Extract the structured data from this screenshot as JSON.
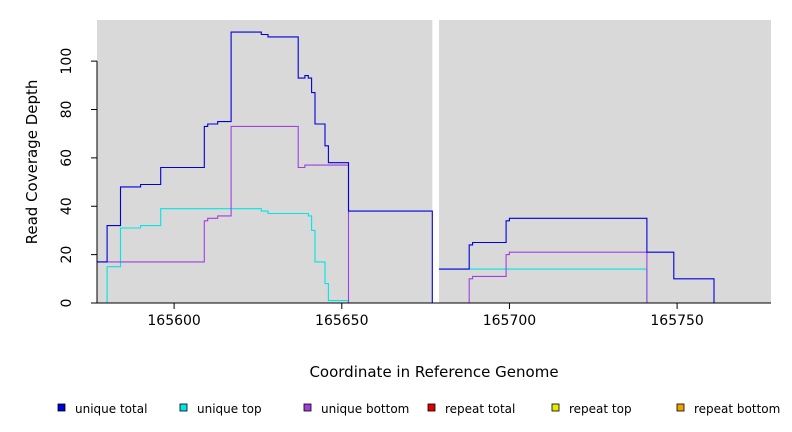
{
  "chart_data": {
    "type": "line",
    "xlabel": "Coordinate in Reference Genome",
    "ylabel": "Read Coverage Depth",
    "xlim": [
      165577,
      165778
    ],
    "ylim": [
      0,
      117
    ],
    "x_ticks": [
      "165600",
      "165650",
      "165700",
      "165750"
    ],
    "y_ticks": [
      "0",
      "20",
      "40",
      "60",
      "80",
      "100"
    ],
    "gap_between": [
      165677,
      165679
    ],
    "panel_color": "#d9d9d9",
    "series": [
      {
        "name": "unique total",
        "color": "#0000dd",
        "steps": [
          [
            165577,
            17
          ],
          [
            165580,
            32
          ],
          [
            165584,
            48
          ],
          [
            165590,
            49
          ],
          [
            165596,
            56
          ],
          [
            165609,
            73
          ],
          [
            165610,
            74
          ],
          [
            165613,
            75
          ],
          [
            165617,
            112
          ],
          [
            165626,
            111
          ],
          [
            165628,
            110
          ],
          [
            165637,
            93
          ],
          [
            165639,
            94
          ],
          [
            165640,
            93
          ],
          [
            165641,
            87
          ],
          [
            165642,
            74
          ],
          [
            165645,
            65
          ],
          [
            165646,
            58
          ],
          [
            165652,
            38
          ],
          [
            165677,
            0
          ]
        ],
        "steps2": [
          [
            165679,
            14
          ],
          [
            165688,
            24
          ],
          [
            165689,
            25
          ],
          [
            165699,
            34
          ],
          [
            165700,
            35
          ],
          [
            165741,
            21
          ],
          [
            165749,
            10
          ],
          [
            165761,
            0
          ],
          [
            165778,
            0
          ]
        ]
      },
      {
        "name": "unique top",
        "color": "#00e5e5",
        "steps": [
          [
            165577,
            0
          ],
          [
            165580,
            15
          ],
          [
            165584,
            31
          ],
          [
            165590,
            32
          ],
          [
            165596,
            39
          ],
          [
            165626,
            38
          ],
          [
            165628,
            37
          ],
          [
            165640,
            36
          ],
          [
            165641,
            30
          ],
          [
            165642,
            17
          ],
          [
            165645,
            8
          ],
          [
            165646,
            1
          ],
          [
            165652,
            0
          ],
          [
            165677,
            0
          ]
        ],
        "steps2": [
          [
            165679,
            14
          ],
          [
            165741,
            0
          ],
          [
            165778,
            0
          ]
        ]
      },
      {
        "name": "unique bottom",
        "color": "#a040e0",
        "steps": [
          [
            165577,
            17
          ],
          [
            165609,
            34
          ],
          [
            165610,
            35
          ],
          [
            165613,
            36
          ],
          [
            165617,
            73
          ],
          [
            165637,
            56
          ],
          [
            165639,
            57
          ],
          [
            165652,
            0
          ],
          [
            165677,
            0
          ]
        ],
        "steps2": [
          [
            165679,
            0
          ],
          [
            165688,
            10
          ],
          [
            165689,
            11
          ],
          [
            165699,
            20
          ],
          [
            165700,
            21
          ],
          [
            165741,
            0
          ],
          [
            165778,
            0
          ]
        ]
      },
      {
        "name": "repeat total",
        "color": "#e00000",
        "steps": [
          [
            165577,
            0
          ],
          [
            165677,
            0
          ]
        ],
        "steps2": [
          [
            165679,
            0
          ],
          [
            165778,
            0
          ]
        ]
      },
      {
        "name": "repeat top",
        "color": "#e8e800",
        "steps": [
          [
            165577,
            0
          ],
          [
            165677,
            0
          ]
        ],
        "steps2": [
          [
            165679,
            0
          ],
          [
            165778,
            0
          ]
        ]
      },
      {
        "name": "repeat bottom",
        "color": "#f0a000",
        "steps": [
          [
            165577,
            0
          ],
          [
            165677,
            0
          ]
        ],
        "steps2": [
          [
            165679,
            0
          ],
          [
            165778,
            0
          ]
        ]
      }
    ]
  }
}
